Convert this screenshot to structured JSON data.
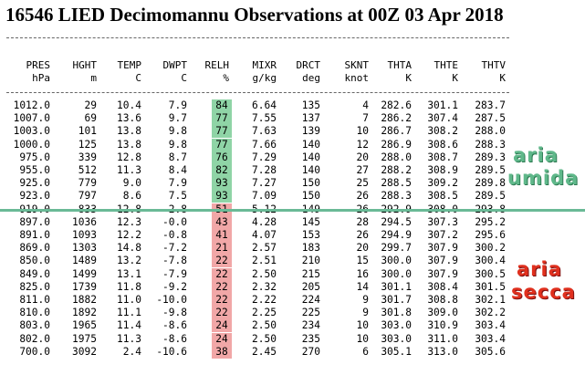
{
  "title": "16546 LIED Decimomannu Observations at 00Z 03 Apr 2018",
  "columns": [
    {
      "name": "PRES",
      "unit": "hPa"
    },
    {
      "name": "HGHT",
      "unit": "m"
    },
    {
      "name": "TEMP",
      "unit": "C"
    },
    {
      "name": "DWPT",
      "unit": "C"
    },
    {
      "name": "RELH",
      "unit": "%"
    },
    {
      "name": "MIXR",
      "unit": "g/kg"
    },
    {
      "name": "DRCT",
      "unit": "deg"
    },
    {
      "name": "SKNT",
      "unit": "knot"
    },
    {
      "name": "THTA",
      "unit": "K"
    },
    {
      "name": "THTE",
      "unit": "K"
    },
    {
      "name": "THTV",
      "unit": "K"
    }
  ],
  "rows": [
    [
      "1012.0",
      "29",
      "10.4",
      "7.9",
      "84",
      "6.64",
      "135",
      "4",
      "282.6",
      "301.1",
      "283.7"
    ],
    [
      "1007.0",
      "69",
      "13.6",
      "9.7",
      "77",
      "7.55",
      "137",
      "7",
      "286.2",
      "307.4",
      "287.5"
    ],
    [
      "1003.0",
      "101",
      "13.8",
      "9.8",
      "77",
      "7.63",
      "139",
      "10",
      "286.7",
      "308.2",
      "288.0"
    ],
    [
      "1000.0",
      "125",
      "13.8",
      "9.8",
      "77",
      "7.66",
      "140",
      "12",
      "286.9",
      "308.6",
      "288.3"
    ],
    [
      "975.0",
      "339",
      "12.8",
      "8.7",
      "76",
      "7.29",
      "140",
      "20",
      "288.0",
      "308.7",
      "289.3"
    ],
    [
      "955.0",
      "512",
      "11.3",
      "8.4",
      "82",
      "7.28",
      "140",
      "27",
      "288.2",
      "308.9",
      "289.5"
    ],
    [
      "925.0",
      "779",
      "9.0",
      "7.9",
      "93",
      "7.27",
      "150",
      "25",
      "288.5",
      "309.2",
      "289.8"
    ],
    [
      "923.0",
      "797",
      "8.6",
      "7.5",
      "93",
      "7.09",
      "150",
      "26",
      "288.3",
      "308.5",
      "289.5"
    ],
    [
      "919.0",
      "833",
      "12.8",
      "2.8",
      "51",
      "5.12",
      "149",
      "26",
      "292.9",
      "308.0",
      "293.8"
    ],
    [
      "897.0",
      "1036",
      "12.3",
      "-0.0",
      "43",
      "4.28",
      "145",
      "28",
      "294.5",
      "307.3",
      "295.2"
    ],
    [
      "891.0",
      "1093",
      "12.2",
      "-0.8",
      "41",
      "4.07",
      "153",
      "26",
      "294.9",
      "307.2",
      "295.6"
    ],
    [
      "869.0",
      "1303",
      "14.8",
      "-7.2",
      "21",
      "2.57",
      "183",
      "20",
      "299.7",
      "307.9",
      "300.2"
    ],
    [
      "850.0",
      "1489",
      "13.2",
      "-7.8",
      "22",
      "2.51",
      "210",
      "15",
      "300.0",
      "307.9",
      "300.4"
    ],
    [
      "849.0",
      "1499",
      "13.1",
      "-7.9",
      "22",
      "2.50",
      "215",
      "16",
      "300.0",
      "307.9",
      "300.5"
    ],
    [
      "825.0",
      "1739",
      "11.8",
      "-9.2",
      "22",
      "2.32",
      "205",
      "14",
      "301.1",
      "308.4",
      "301.5"
    ],
    [
      "811.0",
      "1882",
      "11.0",
      "-10.0",
      "22",
      "2.22",
      "224",
      "9",
      "301.7",
      "308.8",
      "302.1"
    ],
    [
      "810.0",
      "1892",
      "11.1",
      "-9.8",
      "22",
      "2.25",
      "225",
      "9",
      "301.8",
      "309.0",
      "302.2"
    ],
    [
      "803.0",
      "1965",
      "11.4",
      "-8.6",
      "24",
      "2.50",
      "234",
      "10",
      "303.0",
      "310.9",
      "303.4"
    ],
    [
      "802.0",
      "1975",
      "11.3",
      "-8.6",
      "24",
      "2.50",
      "235",
      "10",
      "303.0",
      "311.0",
      "303.4"
    ],
    [
      "700.0",
      "3092",
      "2.4",
      "-10.6",
      "38",
      "2.45",
      "270",
      "6",
      "305.1",
      "313.0",
      "305.6"
    ]
  ],
  "annotations": {
    "humid": [
      "aria",
      "umida"
    ],
    "dry": [
      "aria",
      "secca"
    ]
  },
  "colors": {
    "relh_humid": "#8fd4a6",
    "relh_dry": "#f1a7a7",
    "separator": "#6aba96",
    "annotation_humid": "#5fb88a",
    "annotation_dry": "#e0301e"
  }
}
